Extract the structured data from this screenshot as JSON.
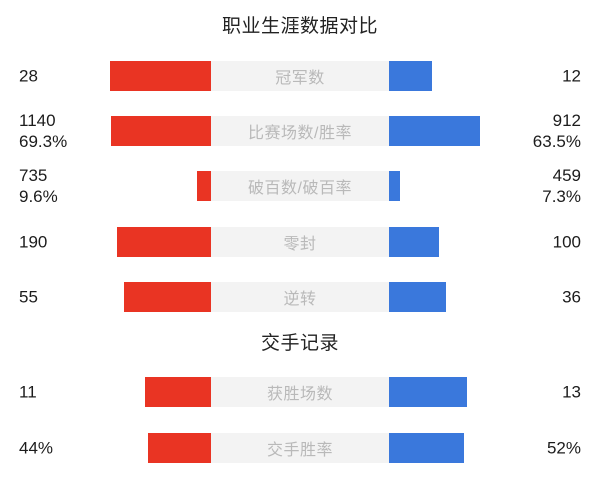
{
  "colors": {
    "left_bar": "#e93423",
    "right_bar": "#3a78dc",
    "track": "#f3f3f3",
    "label_text": "#b9b9b9",
    "value_text": "#1c1c1c",
    "title_text": "#222222",
    "background": "#ffffff"
  },
  "chart_data": {
    "type": "bar",
    "variant": "bidirectional-comparison",
    "legend_position": "none",
    "grid": false,
    "max_bar_share_pct": 100,
    "sections": [
      {
        "title": "职业生涯数据对比",
        "rows": [
          {
            "label": "冠军数",
            "left": {
              "lines": [
                "28"
              ],
              "bar_pct": 70.0
            },
            "right": {
              "lines": [
                "12"
              ],
              "bar_pct": 30.0
            }
          },
          {
            "label": "比赛场数/胜率",
            "left": {
              "lines": [
                "1140",
                "69.3%"
              ],
              "bar_pct": 69.3
            },
            "right": {
              "lines": [
                "912",
                "63.5%"
              ],
              "bar_pct": 63.5
            }
          },
          {
            "label": "破百数/破百率",
            "left": {
              "lines": [
                "735",
                "9.6%"
              ],
              "bar_pct": 9.6
            },
            "right": {
              "lines": [
                "459",
                "7.3%"
              ],
              "bar_pct": 7.3
            }
          },
          {
            "label": "零封",
            "left": {
              "lines": [
                "190"
              ],
              "bar_pct": 65.5
            },
            "right": {
              "lines": [
                "100"
              ],
              "bar_pct": 34.5
            }
          },
          {
            "label": "逆转",
            "left": {
              "lines": [
                "55"
              ],
              "bar_pct": 60.4
            },
            "right": {
              "lines": [
                "36"
              ],
              "bar_pct": 39.6
            }
          }
        ]
      },
      {
        "title": "交手记录",
        "rows": [
          {
            "label": "获胜场数",
            "left": {
              "lines": [
                "11"
              ],
              "bar_pct": 45.8
            },
            "right": {
              "lines": [
                "13"
              ],
              "bar_pct": 54.2
            }
          },
          {
            "label": "交手胜率",
            "left": {
              "lines": [
                "44%"
              ],
              "bar_pct": 44.0
            },
            "right": {
              "lines": [
                "52%"
              ],
              "bar_pct": 52.0
            }
          }
        ]
      }
    ]
  }
}
